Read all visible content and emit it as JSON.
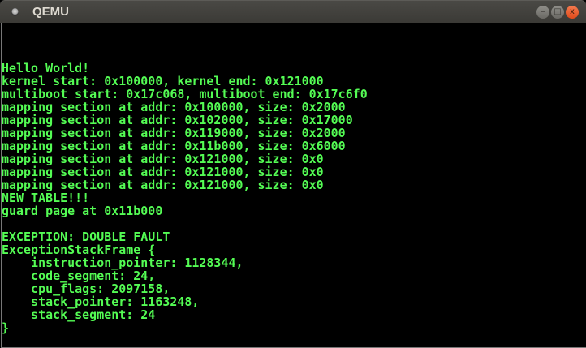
{
  "window": {
    "title": "QEMU",
    "controls": {
      "minimize": "–",
      "maximize": "□",
      "close": "x"
    }
  },
  "console": {
    "text_color": "#54fc54",
    "background": "#000000",
    "lines": [
      "Hello World!",
      "kernel start: 0x100000, kernel end: 0x121000",
      "multiboot start: 0x17c068, multiboot end: 0x17c6f0",
      "mapping section at addr: 0x100000, size: 0x2000",
      "mapping section at addr: 0x102000, size: 0x17000",
      "mapping section at addr: 0x119000, size: 0x2000",
      "mapping section at addr: 0x11b000, size: 0x6000",
      "mapping section at addr: 0x121000, size: 0x0",
      "mapping section at addr: 0x121000, size: 0x0",
      "mapping section at addr: 0x121000, size: 0x0",
      "NEW TABLE!!!",
      "guard page at 0x11b000",
      "",
      "EXCEPTION: DOUBLE FAULT",
      "ExceptionStackFrame {",
      "    instruction_pointer: 1128344,",
      "    code_segment: 24,",
      "    cpu_flags: 2097158,",
      "    stack_pointer: 1163248,",
      "    stack_segment: 24",
      "}"
    ]
  }
}
